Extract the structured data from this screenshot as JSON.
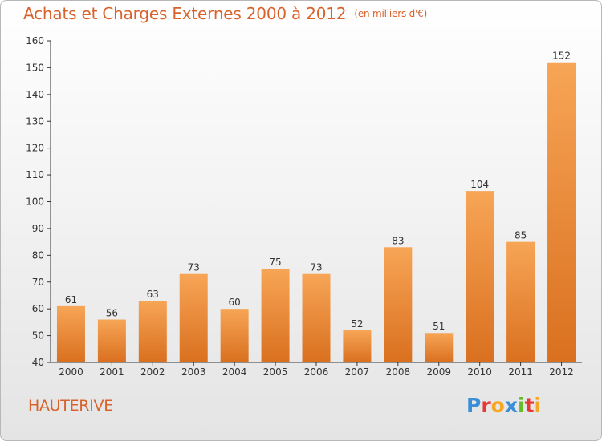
{
  "title": "Achats et Charges Externes 2000 à 2012",
  "unit_label": "(en milliers d'€)",
  "commune": "HAUTERIVE",
  "logo": {
    "text": "Proxiti",
    "letters": [
      {
        "ch": "P",
        "color": "#3a8fd8"
      },
      {
        "ch": "r",
        "color": "#e53935"
      },
      {
        "ch": "o",
        "color": "#f6a623"
      },
      {
        "ch": "x",
        "color": "#3a8fd8"
      },
      {
        "ch": "i",
        "color": "#66bb2a"
      },
      {
        "ch": "t",
        "color": "#e53935"
      },
      {
        "ch": "i",
        "color": "#f6a623"
      }
    ]
  },
  "colors": {
    "bar_light": "#f7a556",
    "bar_dark": "#d9701f",
    "title": "#d9622b",
    "axis": "#333333"
  },
  "chart_data": {
    "type": "bar",
    "categories": [
      "2000",
      "2001",
      "2002",
      "2003",
      "2004",
      "2005",
      "2006",
      "2007",
      "2008",
      "2009",
      "2010",
      "2011",
      "2012"
    ],
    "values": [
      61,
      56,
      63,
      73,
      60,
      75,
      73,
      52,
      83,
      51,
      104,
      85,
      152
    ],
    "ylim": [
      40,
      160
    ],
    "yticks": [
      40,
      50,
      60,
      70,
      80,
      90,
      100,
      110,
      120,
      130,
      140,
      150,
      160
    ],
    "grid": false,
    "legend": "none"
  }
}
